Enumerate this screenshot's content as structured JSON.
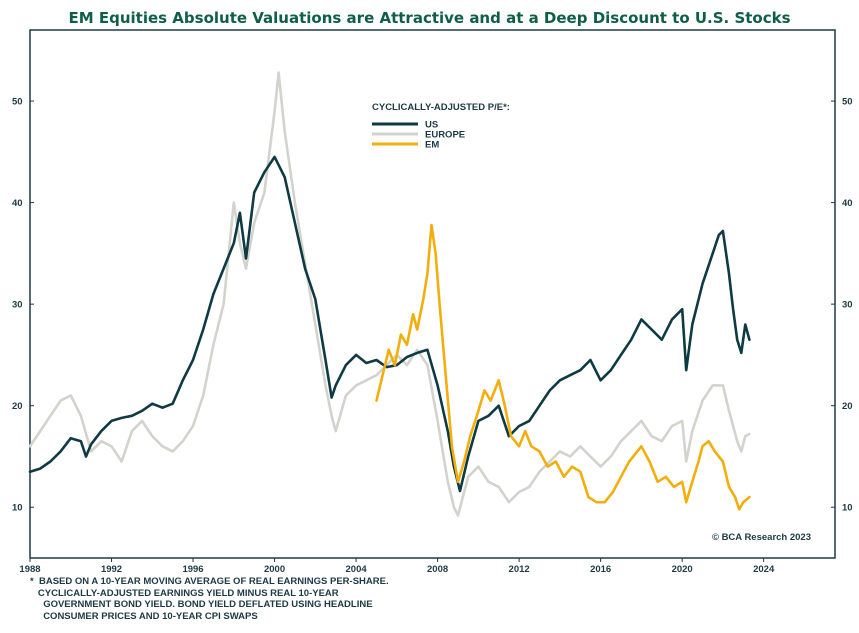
{
  "colors": {
    "title": "#0f5e47",
    "frame": "#1b3a44",
    "us": "#0e3a44",
    "europe": "#d3d3cd",
    "em": "#f2ae0c"
  },
  "footnote": [
    "*  BASED ON A 10-YEAR MOVING AVERAGE OF REAL EARNINGS PER-SHARE.",
    "   CYCLICALLY-ADJUSTED EARNINGS YIELD MINUS REAL 10-YEAR",
    "     GOVERNMENT BOND YIELD. BOND YIELD DEFLATED USING HEADLINE",
    "     CONSUMER PRICES AND 10-YEAR CPI SWAPS"
  ],
  "chart_data": {
    "type": "line",
    "title": "EM Equities Absolute Valuations are Attractive and at a Deep Discount to U.S. Stocks",
    "legend_title": "CYCLICALLY-ADJUSTED P/E*:",
    "legend_position": "top-center",
    "credit": "© BCA Research 2023",
    "xlim": [
      1988,
      2027.5
    ],
    "ylim": [
      5,
      57
    ],
    "x_ticks": [
      1988,
      1992,
      1996,
      2000,
      2004,
      2008,
      2012,
      2016,
      2020,
      2024
    ],
    "y_ticks": [
      10,
      20,
      30,
      40,
      50
    ],
    "y_axis_both_sides": true,
    "grid": false,
    "series": [
      {
        "name": "US",
        "color_key": "us",
        "points": [
          [
            1988.0,
            13.5
          ],
          [
            1988.5,
            13.8
          ],
          [
            1989.0,
            14.5
          ],
          [
            1989.5,
            15.5
          ],
          [
            1990.0,
            16.8
          ],
          [
            1990.5,
            16.5
          ],
          [
            1990.75,
            15.0
          ],
          [
            1991.0,
            16.2
          ],
          [
            1991.5,
            17.5
          ],
          [
            1992.0,
            18.5
          ],
          [
            1992.5,
            18.8
          ],
          [
            1993.0,
            19.0
          ],
          [
            1993.5,
            19.5
          ],
          [
            1994.0,
            20.2
          ],
          [
            1994.5,
            19.8
          ],
          [
            1995.0,
            20.2
          ],
          [
            1995.5,
            22.5
          ],
          [
            1996.0,
            24.5
          ],
          [
            1996.5,
            27.5
          ],
          [
            1997.0,
            31.0
          ],
          [
            1997.5,
            33.5
          ],
          [
            1998.0,
            36.0
          ],
          [
            1998.3,
            39.0
          ],
          [
            1998.6,
            34.5
          ],
          [
            1999.0,
            41.0
          ],
          [
            1999.5,
            43.0
          ],
          [
            2000.0,
            44.5
          ],
          [
            2000.5,
            42.5
          ],
          [
            2001.0,
            38.0
          ],
          [
            2001.5,
            33.5
          ],
          [
            2002.0,
            30.5
          ],
          [
            2002.5,
            24.5
          ],
          [
            2002.8,
            20.8
          ],
          [
            2003.0,
            22.0
          ],
          [
            2003.5,
            24.0
          ],
          [
            2004.0,
            25.0
          ],
          [
            2004.5,
            24.2
          ],
          [
            2005.0,
            24.5
          ],
          [
            2005.5,
            23.8
          ],
          [
            2006.0,
            24.0
          ],
          [
            2006.5,
            24.8
          ],
          [
            2007.0,
            25.2
          ],
          [
            2007.5,
            25.5
          ],
          [
            2008.0,
            22.0
          ],
          [
            2008.5,
            17.5
          ],
          [
            2008.8,
            14.0
          ],
          [
            2009.1,
            11.6
          ],
          [
            2009.5,
            15.0
          ],
          [
            2010.0,
            18.5
          ],
          [
            2010.5,
            19.0
          ],
          [
            2011.0,
            20.0
          ],
          [
            2011.5,
            17.0
          ],
          [
            2012.0,
            18.0
          ],
          [
            2012.5,
            18.5
          ],
          [
            2013.0,
            20.0
          ],
          [
            2013.5,
            21.5
          ],
          [
            2014.0,
            22.5
          ],
          [
            2014.5,
            23.0
          ],
          [
            2015.0,
            23.5
          ],
          [
            2015.5,
            24.5
          ],
          [
            2016.0,
            22.5
          ],
          [
            2016.5,
            23.5
          ],
          [
            2017.0,
            25.0
          ],
          [
            2017.5,
            26.5
          ],
          [
            2018.0,
            28.5
          ],
          [
            2018.5,
            27.5
          ],
          [
            2019.0,
            26.5
          ],
          [
            2019.5,
            28.5
          ],
          [
            2020.0,
            29.5
          ],
          [
            2020.2,
            23.5
          ],
          [
            2020.5,
            28.0
          ],
          [
            2021.0,
            32.0
          ],
          [
            2021.5,
            35.0
          ],
          [
            2021.8,
            36.8
          ],
          [
            2022.0,
            37.2
          ],
          [
            2022.3,
            33.0
          ],
          [
            2022.5,
            29.5
          ],
          [
            2022.7,
            26.5
          ],
          [
            2022.9,
            25.2
          ],
          [
            2023.1,
            28.0
          ],
          [
            2023.3,
            26.5
          ]
        ]
      },
      {
        "name": "EUROPE",
        "color_key": "europe",
        "points": [
          [
            1988.0,
            16.0
          ],
          [
            1988.5,
            17.5
          ],
          [
            1989.0,
            19.0
          ],
          [
            1989.5,
            20.5
          ],
          [
            1990.0,
            21.0
          ],
          [
            1990.5,
            19.0
          ],
          [
            1991.0,
            15.5
          ],
          [
            1991.5,
            16.5
          ],
          [
            1992.0,
            16.0
          ],
          [
            1992.5,
            14.5
          ],
          [
            1993.0,
            17.5
          ],
          [
            1993.5,
            18.5
          ],
          [
            1994.0,
            17.0
          ],
          [
            1994.5,
            16.0
          ],
          [
            1995.0,
            15.5
          ],
          [
            1995.5,
            16.5
          ],
          [
            1996.0,
            18.0
          ],
          [
            1996.5,
            21.0
          ],
          [
            1997.0,
            26.0
          ],
          [
            1997.5,
            30.0
          ],
          [
            1998.0,
            40.0
          ],
          [
            1998.3,
            36.0
          ],
          [
            1998.6,
            33.5
          ],
          [
            1999.0,
            38.0
          ],
          [
            1999.5,
            41.0
          ],
          [
            2000.0,
            49.0
          ],
          [
            2000.2,
            52.8
          ],
          [
            2000.5,
            47.0
          ],
          [
            2001.0,
            40.0
          ],
          [
            2001.5,
            34.0
          ],
          [
            2002.0,
            28.0
          ],
          [
            2002.5,
            22.0
          ],
          [
            2002.8,
            19.0
          ],
          [
            2003.0,
            17.5
          ],
          [
            2003.5,
            21.0
          ],
          [
            2004.0,
            22.0
          ],
          [
            2004.5,
            22.5
          ],
          [
            2005.0,
            23.0
          ],
          [
            2005.5,
            24.0
          ],
          [
            2006.0,
            25.0
          ],
          [
            2006.5,
            24.0
          ],
          [
            2007.0,
            25.5
          ],
          [
            2007.5,
            24.0
          ],
          [
            2008.0,
            18.5
          ],
          [
            2008.5,
            12.5
          ],
          [
            2008.8,
            10.0
          ],
          [
            2009.0,
            9.2
          ],
          [
            2009.5,
            13.0
          ],
          [
            2010.0,
            14.0
          ],
          [
            2010.5,
            12.5
          ],
          [
            2011.0,
            12.0
          ],
          [
            2011.5,
            10.5
          ],
          [
            2012.0,
            11.5
          ],
          [
            2012.5,
            12.0
          ],
          [
            2013.0,
            13.5
          ],
          [
            2013.5,
            14.5
          ],
          [
            2014.0,
            15.5
          ],
          [
            2014.5,
            15.0
          ],
          [
            2015.0,
            16.0
          ],
          [
            2015.5,
            15.0
          ],
          [
            2016.0,
            14.0
          ],
          [
            2016.5,
            15.0
          ],
          [
            2017.0,
            16.5
          ],
          [
            2017.5,
            17.5
          ],
          [
            2018.0,
            18.5
          ],
          [
            2018.5,
            17.0
          ],
          [
            2019.0,
            16.5
          ],
          [
            2019.5,
            18.0
          ],
          [
            2020.0,
            18.5
          ],
          [
            2020.2,
            14.5
          ],
          [
            2020.5,
            17.5
          ],
          [
            2021.0,
            20.5
          ],
          [
            2021.5,
            22.0
          ],
          [
            2022.0,
            22.0
          ],
          [
            2022.3,
            19.5
          ],
          [
            2022.7,
            16.5
          ],
          [
            2022.9,
            15.5
          ],
          [
            2023.1,
            17.0
          ],
          [
            2023.3,
            17.2
          ]
        ]
      },
      {
        "name": "EM",
        "color_key": "em",
        "points": [
          [
            2005.0,
            20.5
          ],
          [
            2005.3,
            23.0
          ],
          [
            2005.6,
            25.5
          ],
          [
            2005.9,
            24.0
          ],
          [
            2006.2,
            27.0
          ],
          [
            2006.5,
            26.0
          ],
          [
            2006.8,
            29.0
          ],
          [
            2007.0,
            27.5
          ],
          [
            2007.3,
            30.5
          ],
          [
            2007.5,
            33.0
          ],
          [
            2007.7,
            37.8
          ],
          [
            2007.9,
            35.0
          ],
          [
            2008.1,
            30.0
          ],
          [
            2008.4,
            23.0
          ],
          [
            2008.7,
            16.0
          ],
          [
            2009.0,
            12.5
          ],
          [
            2009.3,
            14.5
          ],
          [
            2009.6,
            17.0
          ],
          [
            2010.0,
            19.5
          ],
          [
            2010.3,
            21.5
          ],
          [
            2010.6,
            20.5
          ],
          [
            2011.0,
            22.5
          ],
          [
            2011.3,
            20.0
          ],
          [
            2011.6,
            17.0
          ],
          [
            2012.0,
            16.0
          ],
          [
            2012.3,
            17.5
          ],
          [
            2012.6,
            16.0
          ],
          [
            2013.0,
            15.5
          ],
          [
            2013.4,
            14.0
          ],
          [
            2013.8,
            14.5
          ],
          [
            2014.2,
            13.0
          ],
          [
            2014.6,
            14.0
          ],
          [
            2015.0,
            13.5
          ],
          [
            2015.4,
            11.0
          ],
          [
            2015.8,
            10.5
          ],
          [
            2016.2,
            10.5
          ],
          [
            2016.6,
            11.5
          ],
          [
            2017.0,
            13.0
          ],
          [
            2017.4,
            14.5
          ],
          [
            2017.8,
            15.5
          ],
          [
            2018.0,
            16.0
          ],
          [
            2018.4,
            14.5
          ],
          [
            2018.8,
            12.5
          ],
          [
            2019.2,
            13.0
          ],
          [
            2019.6,
            12.0
          ],
          [
            2020.0,
            12.5
          ],
          [
            2020.2,
            10.5
          ],
          [
            2020.5,
            12.5
          ],
          [
            2020.8,
            14.5
          ],
          [
            2021.0,
            16.0
          ],
          [
            2021.3,
            16.5
          ],
          [
            2021.6,
            15.5
          ],
          [
            2022.0,
            14.5
          ],
          [
            2022.3,
            12.0
          ],
          [
            2022.6,
            11.0
          ],
          [
            2022.8,
            9.8
          ],
          [
            2023.0,
            10.5
          ],
          [
            2023.3,
            11.0
          ]
        ]
      }
    ]
  }
}
